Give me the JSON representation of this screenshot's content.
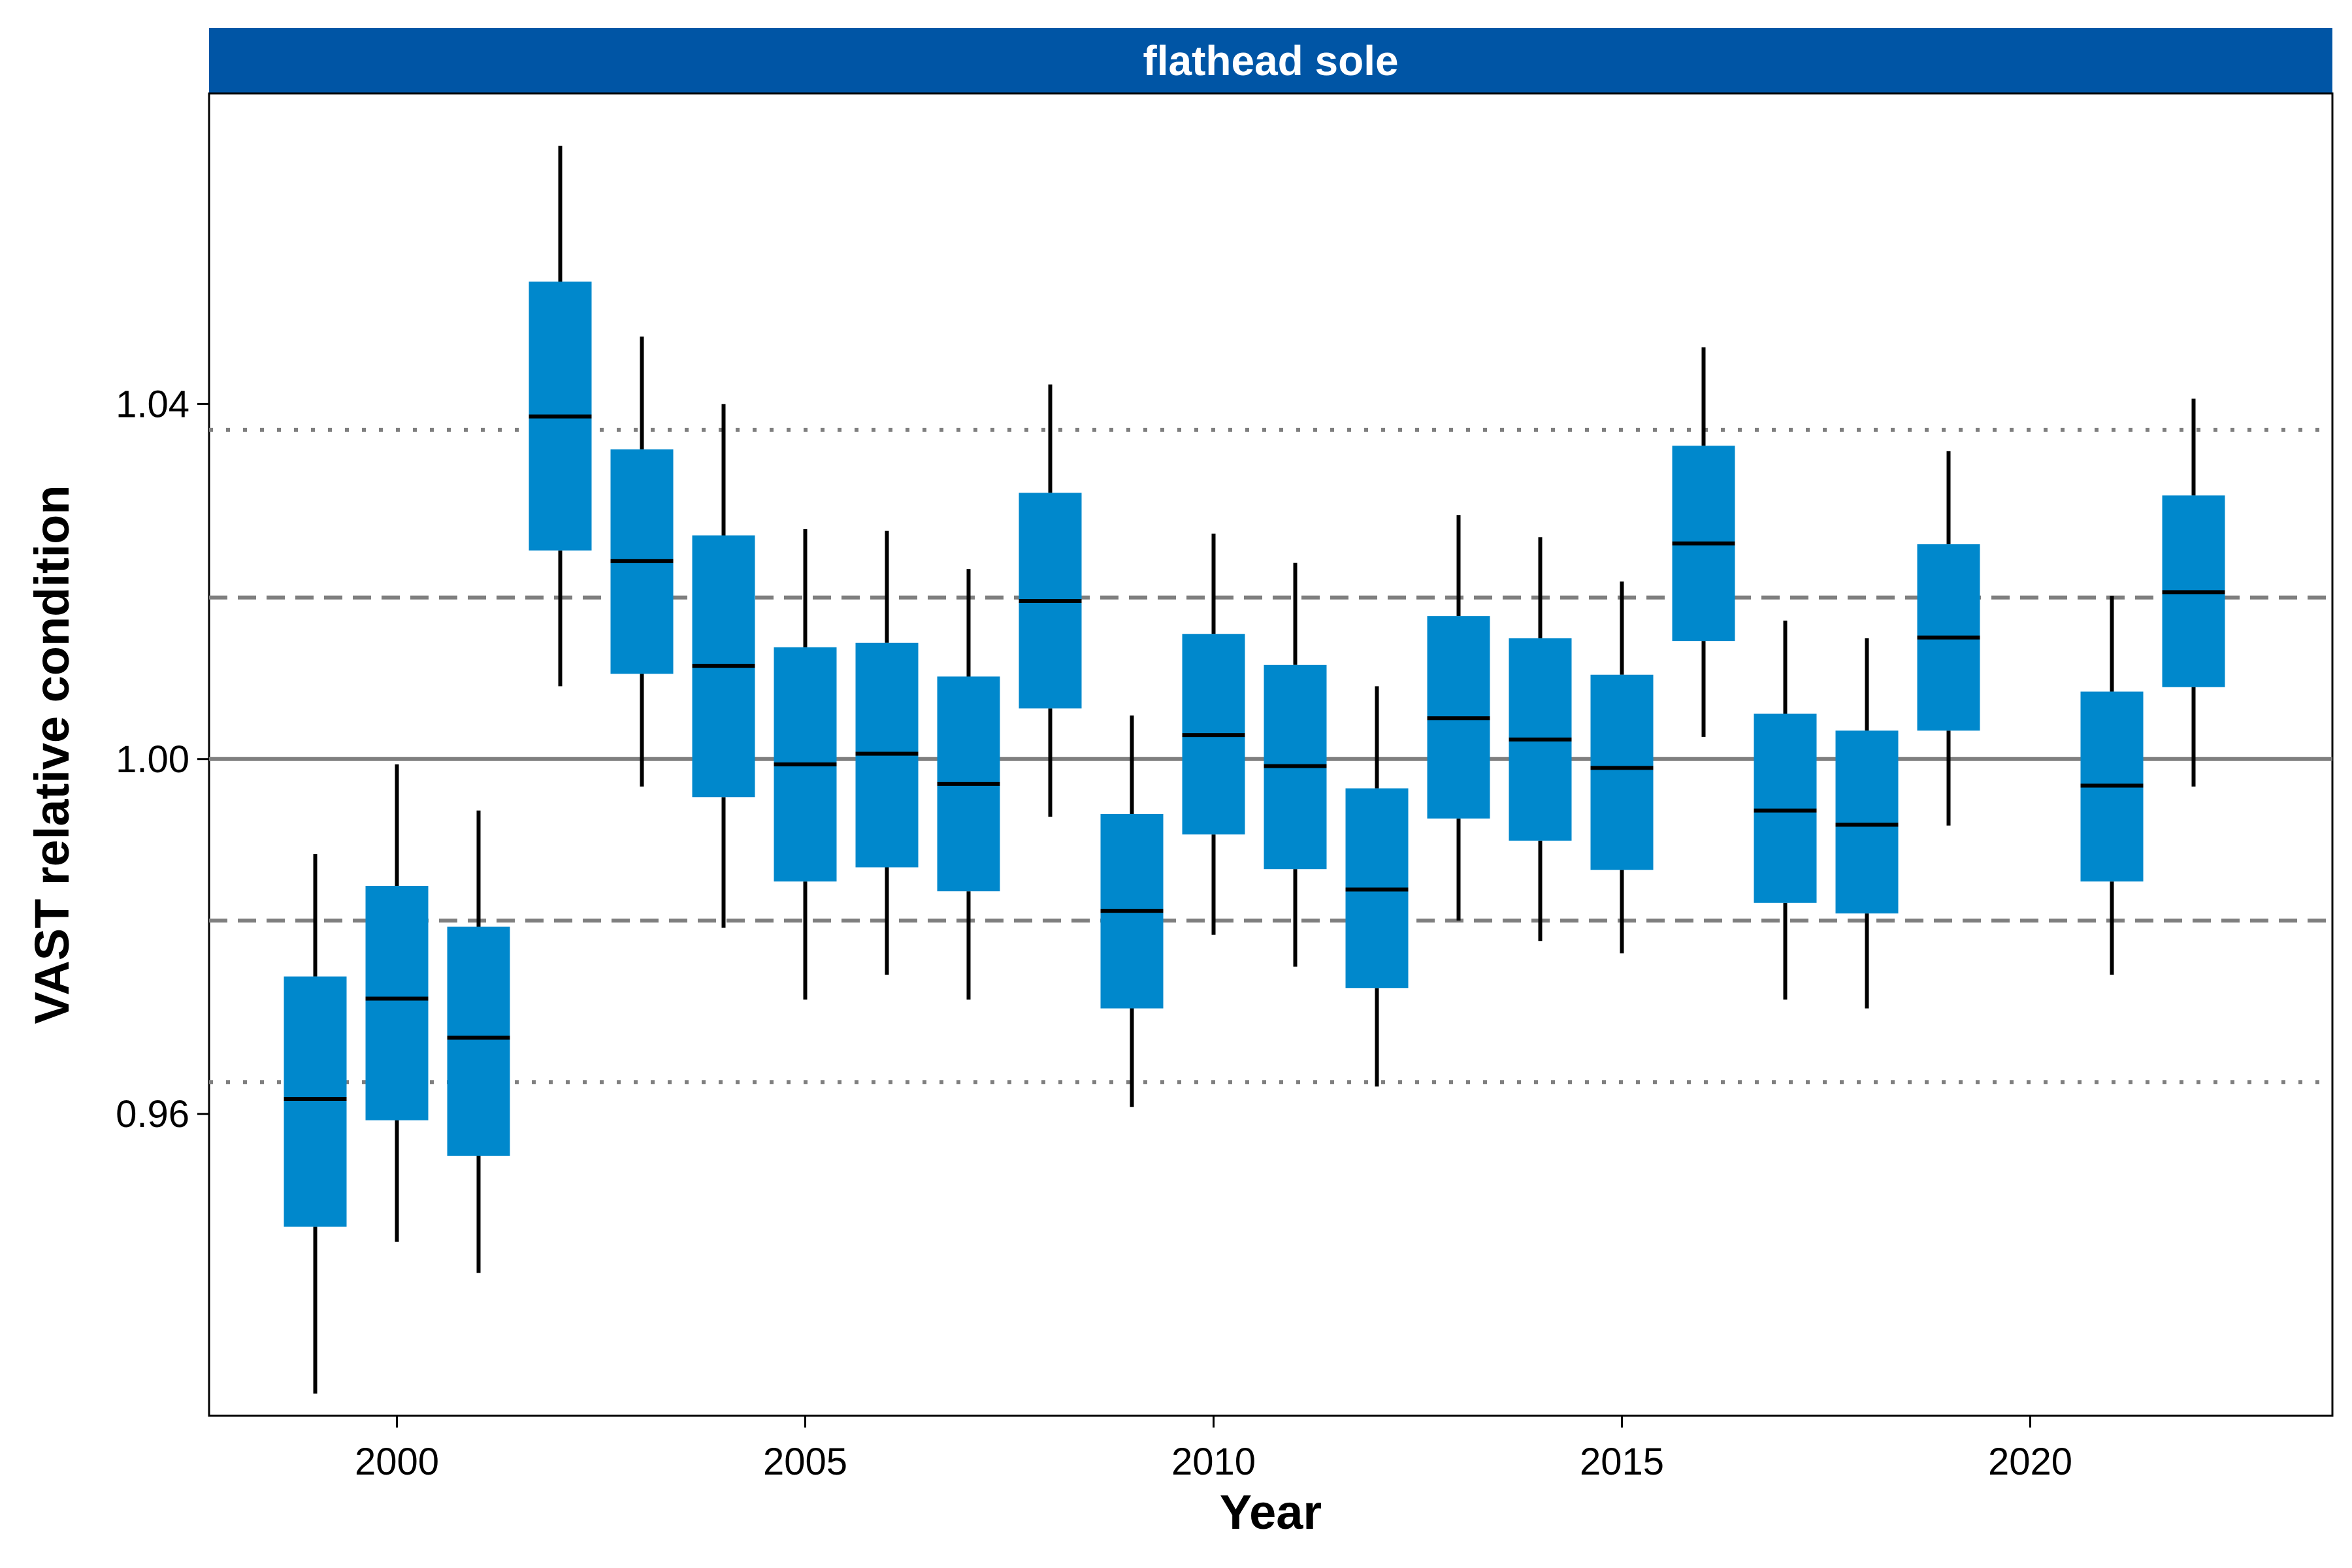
{
  "chart_data": {
    "type": "boxplot",
    "panel_title": "flathead sole",
    "xlabel": "Year",
    "ylabel": "VAST relative condition",
    "xlim": [
      1997.7,
      2023.7
    ],
    "ylim": [
      0.926,
      1.075
    ],
    "x_ticks": [
      {
        "value": 2000,
        "label": "2000"
      },
      {
        "value": 2005,
        "label": "2005"
      },
      {
        "value": 2010,
        "label": "2010"
      },
      {
        "value": 2015,
        "label": "2015"
      },
      {
        "value": 2020,
        "label": "2020"
      }
    ],
    "y_ticks": [
      {
        "value": 0.96,
        "label": "0.96"
      },
      {
        "value": 1.0,
        "label": "1.00"
      },
      {
        "value": 1.04,
        "label": "1.04"
      }
    ],
    "reference_lines": [
      {
        "y": 1.0,
        "style": "solid"
      },
      {
        "y": 1.0182,
        "style": "dashed"
      },
      {
        "y": 0.9818,
        "style": "dashed"
      },
      {
        "y": 1.0371,
        "style": "dotted"
      },
      {
        "y": 0.9636,
        "style": "dotted"
      }
    ],
    "box_color": "#0088cc",
    "strip_color": "#0055a5",
    "reference_line_color": "#7f7f7f",
    "boxes": [
      {
        "year": 1999,
        "whisker_low": 0.9285,
        "box_low": 0.9473,
        "median": 0.9617,
        "box_high": 0.9755,
        "whisker_high": 0.9893
      },
      {
        "year": 2000,
        "whisker_low": 0.9456,
        "box_low": 0.9593,
        "median": 0.973,
        "box_high": 0.9857,
        "whisker_high": 0.9994
      },
      {
        "year": 2001,
        "whisker_low": 0.9421,
        "box_low": 0.9553,
        "median": 0.9686,
        "box_high": 0.9811,
        "whisker_high": 0.9942
      },
      {
        "year": 2002,
        "whisker_low": 1.0082,
        "box_low": 1.0235,
        "median": 1.0386,
        "box_high": 1.0538,
        "whisker_high": 1.0691
      },
      {
        "year": 2003,
        "whisker_low": 0.9969,
        "box_low": 1.0096,
        "median": 1.0223,
        "box_high": 1.0349,
        "whisker_high": 1.0476
      },
      {
        "year": 2004,
        "whisker_low": 0.981,
        "box_low": 0.9957,
        "median": 1.0105,
        "box_high": 1.0252,
        "whisker_high": 1.04
      },
      {
        "year": 2005,
        "whisker_low": 0.9729,
        "box_low": 0.9862,
        "median": 0.9994,
        "box_high": 1.0126,
        "whisker_high": 1.0259
      },
      {
        "year": 2006,
        "whisker_low": 0.9757,
        "box_low": 0.9878,
        "median": 1.0006,
        "box_high": 1.0131,
        "whisker_high": 1.0257
      },
      {
        "year": 2007,
        "whisker_low": 0.9729,
        "box_low": 0.9851,
        "median": 0.9972,
        "box_high": 1.0093,
        "whisker_high": 1.0214
      },
      {
        "year": 2008,
        "whisker_low": 0.9935,
        "box_low": 1.0057,
        "median": 1.0178,
        "box_high": 1.03,
        "whisker_high": 1.0422
      },
      {
        "year": 2009,
        "whisker_low": 0.9608,
        "box_low": 0.9719,
        "median": 0.9829,
        "box_high": 0.9938,
        "whisker_high": 1.0049
      },
      {
        "year": 2010,
        "whisker_low": 0.9802,
        "box_low": 0.9915,
        "median": 1.0027,
        "box_high": 1.0141,
        "whisker_high": 1.0254
      },
      {
        "year": 2011,
        "whisker_low": 0.9766,
        "box_low": 0.9876,
        "median": 0.9992,
        "box_high": 1.0106,
        "whisker_high": 1.0221
      },
      {
        "year": 2012,
        "whisker_low": 0.9631,
        "box_low": 0.9742,
        "median": 0.9853,
        "box_high": 0.9967,
        "whisker_high": 1.0082
      },
      {
        "year": 2013,
        "whisker_low": 0.9818,
        "box_low": 0.9933,
        "median": 1.0046,
        "box_high": 1.0161,
        "whisker_high": 1.0275
      },
      {
        "year": 2014,
        "whisker_low": 0.9795,
        "box_low": 0.9908,
        "median": 1.0022,
        "box_high": 1.0136,
        "whisker_high": 1.025
      },
      {
        "year": 2015,
        "whisker_low": 0.9781,
        "box_low": 0.9875,
        "median": 0.999,
        "box_high": 1.0095,
        "whisker_high": 1.02
      },
      {
        "year": 2016,
        "whisker_low": 1.0025,
        "box_low": 1.0133,
        "median": 1.0243,
        "box_high": 1.0353,
        "whisker_high": 1.0464
      },
      {
        "year": 2017,
        "whisker_low": 0.9729,
        "box_low": 0.9838,
        "median": 0.9942,
        "box_high": 1.0051,
        "whisker_high": 1.0156
      },
      {
        "year": 2018,
        "whisker_low": 0.9719,
        "box_low": 0.9826,
        "median": 0.9926,
        "box_high": 1.0032,
        "whisker_high": 1.0136
      },
      {
        "year": 2019,
        "whisker_low": 0.9925,
        "box_low": 1.0032,
        "median": 1.0137,
        "box_high": 1.0242,
        "whisker_high": 1.0347
      },
      {
        "year": 2021,
        "whisker_low": 0.9757,
        "box_low": 0.9862,
        "median": 0.997,
        "box_high": 1.0076,
        "whisker_high": 1.0184
      },
      {
        "year": 2022,
        "whisker_low": 0.9969,
        "box_low": 1.0081,
        "median": 1.0188,
        "box_high": 1.0297,
        "whisker_high": 1.0406
      }
    ]
  }
}
